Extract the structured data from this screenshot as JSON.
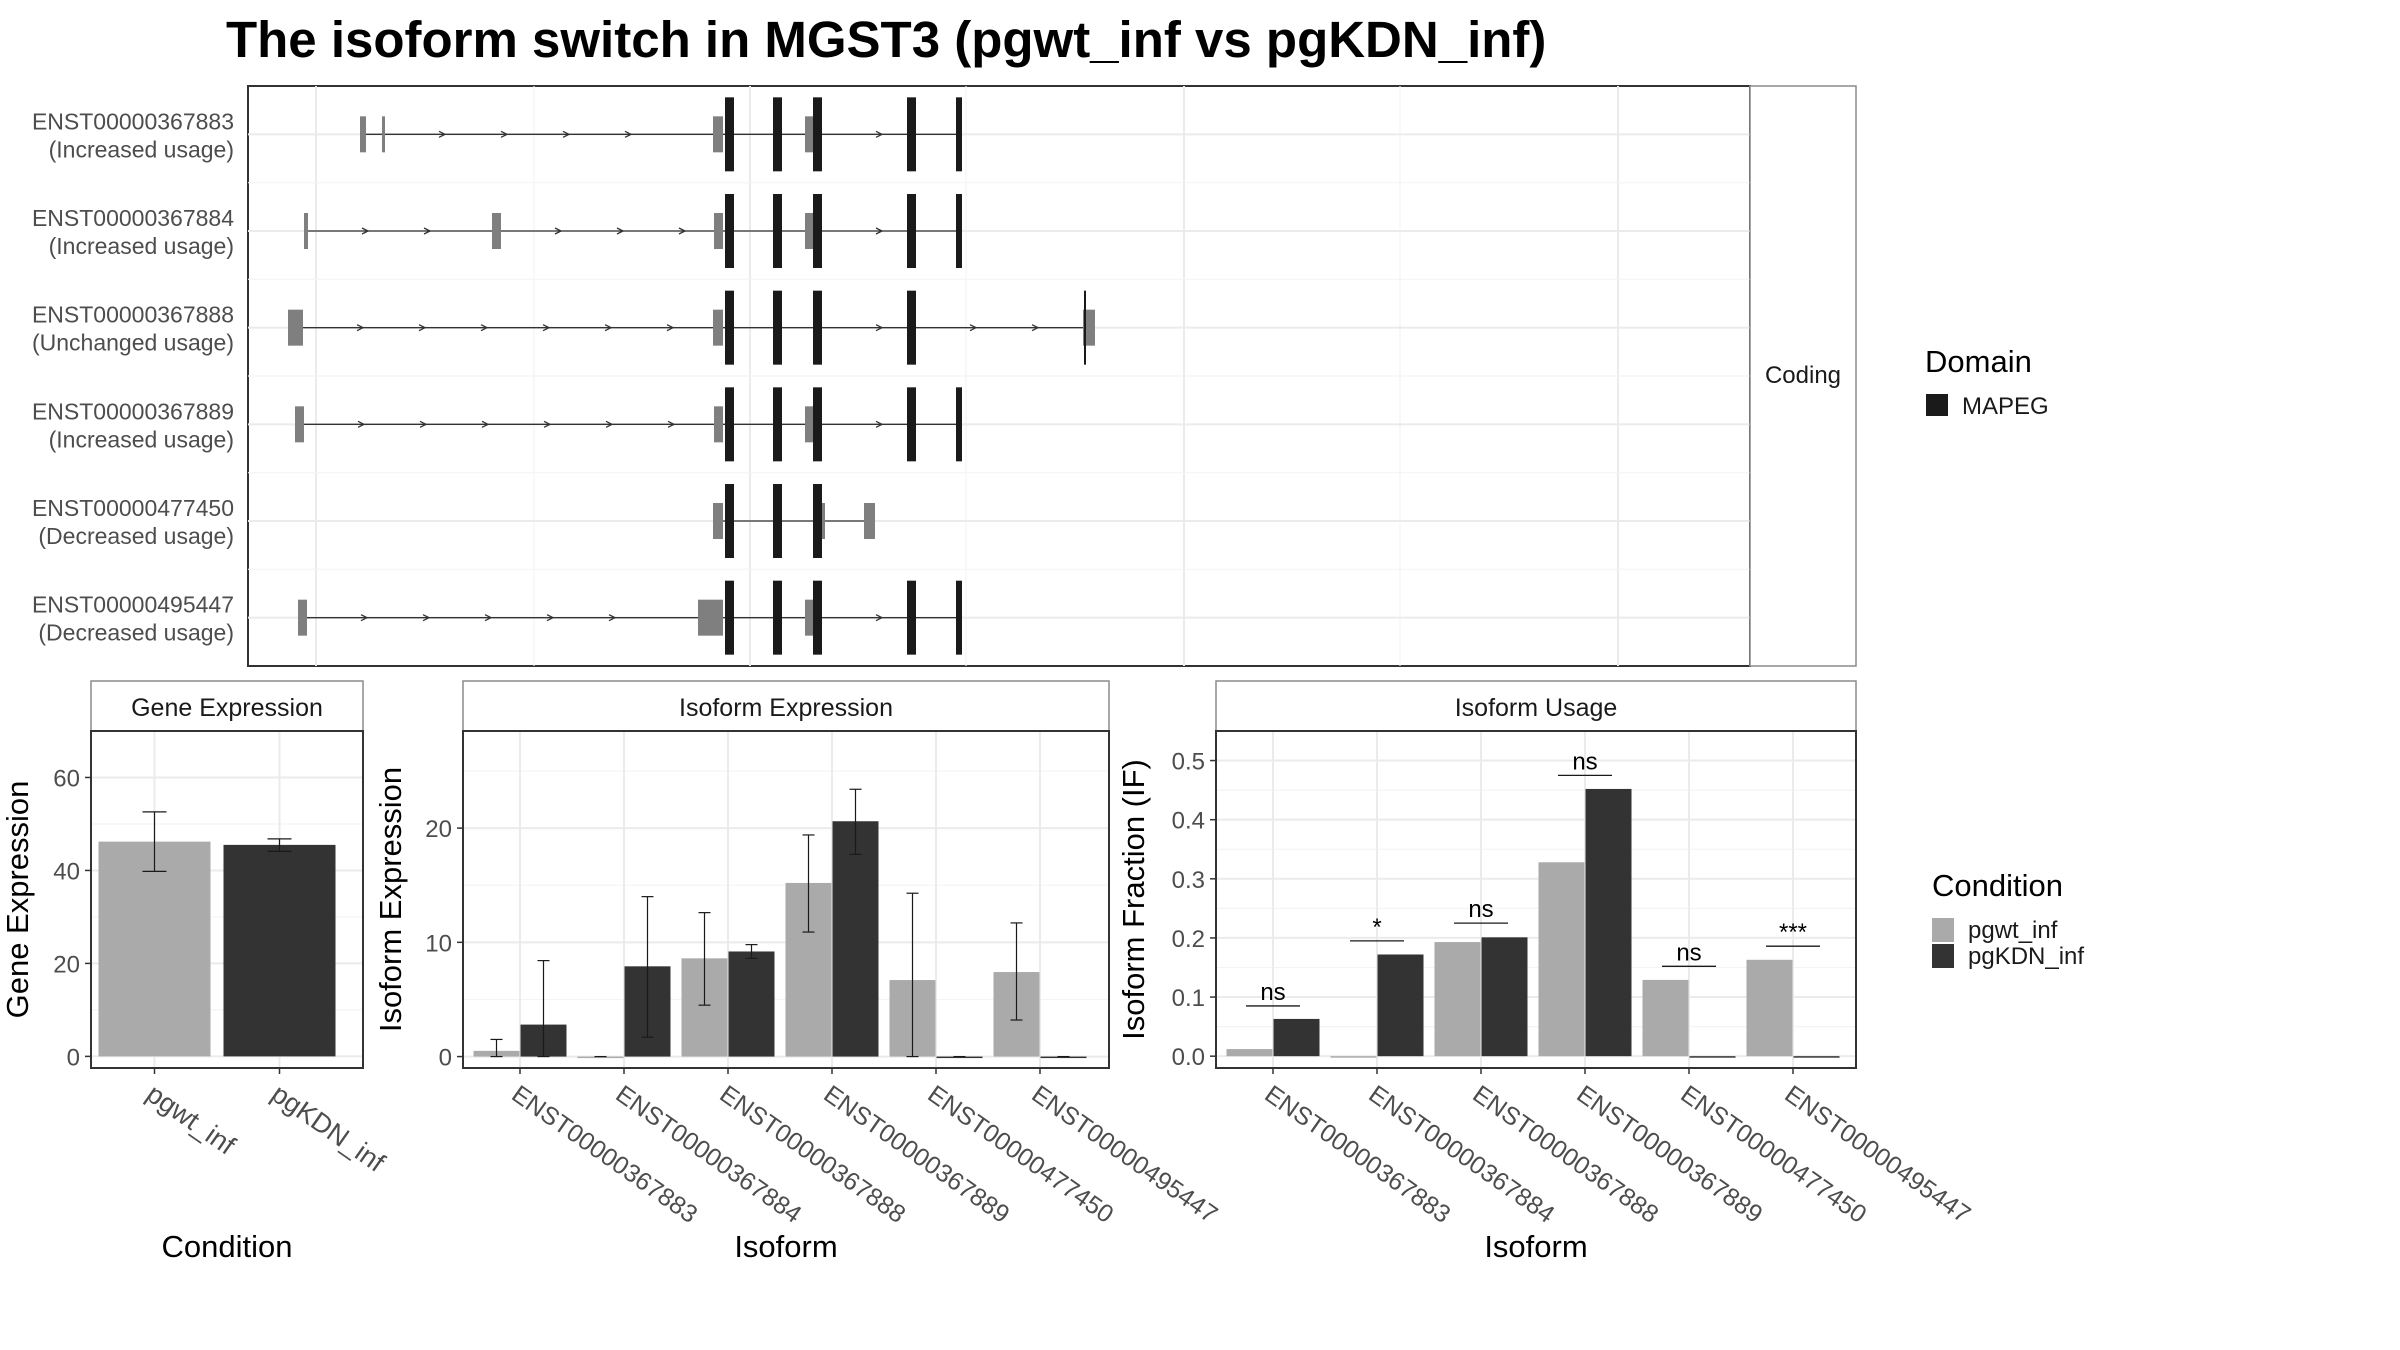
{
  "title": "The isoform switch in MGST3 (pgwt_inf vs pgKDN_inf)",
  "colors": {
    "pgwt_inf": "#aaaaaa",
    "pgKDN_inf": "#333333",
    "utr": "#7f7f7f",
    "domain": "#1a1a1a",
    "grid": "#ebebeb",
    "border": "#333333",
    "strip_border": "#8c8c8c"
  },
  "structure": {
    "strip_label": "Coding",
    "legend_title": "Domain",
    "legend_items": [
      {
        "label": "MAPEG",
        "color": "#1a1a1a"
      }
    ],
    "transcripts": [
      {
        "id": "ENST00000367883",
        "usage": "(Increased usage)",
        "utr": [
          [
            112,
            118
          ],
          [
            134,
            137
          ],
          [
            465,
            475
          ],
          [
            557,
            572
          ]
        ],
        "domain": [
          [
            477,
            486
          ],
          [
            525,
            534
          ],
          [
            565,
            574
          ],
          [
            659,
            668
          ],
          [
            708,
            714
          ]
        ],
        "intron": [
          0,
          0
        ]
      },
      {
        "id": "ENST00000367884",
        "usage": "(Increased usage)",
        "utr": [
          [
            56,
            60
          ],
          [
            244,
            253
          ],
          [
            466,
            475
          ],
          [
            557,
            572
          ]
        ],
        "domain": [
          [
            477,
            486
          ],
          [
            525,
            534
          ],
          [
            565,
            574
          ],
          [
            659,
            668
          ],
          [
            708,
            714
          ]
        ],
        "intron": [
          0,
          0
        ]
      },
      {
        "id": "ENST00000367888",
        "usage": "(Unchanged usage)",
        "utr": [
          [
            40,
            55
          ],
          [
            465,
            475
          ],
          [
            835,
            847
          ]
        ],
        "domain": [
          [
            477,
            486
          ],
          [
            525,
            534
          ],
          [
            565,
            574
          ],
          [
            659,
            668
          ],
          [
            836,
            838
          ]
        ],
        "intron": [
          0,
          0
        ]
      },
      {
        "id": "ENST00000367889",
        "usage": "(Increased usage)",
        "utr": [
          [
            47,
            56
          ],
          [
            466,
            475
          ],
          [
            557,
            572
          ]
        ],
        "domain": [
          [
            477,
            486
          ],
          [
            525,
            534
          ],
          [
            565,
            574
          ],
          [
            659,
            668
          ],
          [
            708,
            714
          ]
        ],
        "intron": [
          0,
          0
        ]
      },
      {
        "id": "ENST00000477450",
        "usage": "(Decreased usage)",
        "utr": [
          [
            465,
            475
          ],
          [
            574,
            577
          ],
          [
            616,
            627
          ]
        ],
        "domain": [
          [
            477,
            486
          ],
          [
            525,
            534
          ],
          [
            565,
            574
          ]
        ],
        "intron": [
          0,
          0
        ]
      },
      {
        "id": "ENST00000495447",
        "usage": "(Decreased usage)",
        "utr": [
          [
            50,
            59
          ],
          [
            450,
            475
          ],
          [
            557,
            572
          ]
        ],
        "domain": [
          [
            477,
            486
          ],
          [
            525,
            534
          ],
          [
            565,
            574
          ],
          [
            659,
            668
          ],
          [
            708,
            714
          ]
        ],
        "intron": [
          0,
          0
        ]
      }
    ]
  },
  "chart_data": [
    {
      "type": "bar",
      "title": "Gene Expression",
      "xlabel": "Condition",
      "ylabel": "Gene Expression",
      "ylim": [
        -2.5,
        70
      ],
      "yticks": [
        0,
        20,
        40,
        60
      ],
      "grid": true,
      "categories": [
        "pgwt_inf",
        "pgKDN_inf"
      ],
      "series": [
        {
          "name": "pgwt_inf",
          "values": [
            46.2,
            null
          ],
          "err_low": [
            39.8,
            null
          ],
          "err_high": [
            52.6,
            null
          ]
        },
        {
          "name": "pgKDN_inf",
          "values": [
            null,
            45.5
          ],
          "err_low": [
            null,
            44.1
          ],
          "err_high": [
            null,
            46.8
          ]
        }
      ]
    },
    {
      "type": "bar",
      "title": "Isoform Expression",
      "xlabel": "Isoform",
      "ylabel": "Isoform Expression",
      "ylim": [
        -1,
        28.5
      ],
      "yticks": [
        0,
        10,
        20
      ],
      "grid": true,
      "categories": [
        "ENST00000367883",
        "ENST00000367884",
        "ENST00000367888",
        "ENST00000367889",
        "ENST00000477450",
        "ENST00000495447"
      ],
      "series": [
        {
          "name": "pgwt_inf",
          "values": [
            0.5,
            0.0,
            8.6,
            15.2,
            6.7,
            7.4
          ],
          "err_low": [
            0.0,
            0.0,
            4.5,
            10.9,
            0.0,
            3.2
          ],
          "err_high": [
            1.5,
            0.0,
            12.6,
            19.4,
            14.3,
            11.7
          ]
        },
        {
          "name": "pgKDN_inf",
          "values": [
            2.8,
            7.9,
            9.2,
            20.6,
            0.0,
            0.0
          ],
          "err_low": [
            0.0,
            1.7,
            8.6,
            17.7,
            0.0,
            0.0
          ],
          "err_high": [
            8.4,
            14.0,
            9.8,
            23.4,
            0.0,
            0.0
          ]
        }
      ]
    },
    {
      "type": "bar",
      "title": "Isoform Usage",
      "xlabel": "Isoform",
      "ylabel": "Isoform Fraction (IF)",
      "ylim": [
        -0.02,
        0.55
      ],
      "yticks": [
        0.0,
        0.1,
        0.2,
        0.3,
        0.4,
        0.5
      ],
      "ytick_labels": [
        "0.0",
        "0.1",
        "0.2",
        "0.3",
        "0.4",
        "0.5"
      ],
      "grid": true,
      "categories": [
        "ENST00000367883",
        "ENST00000367884",
        "ENST00000367888",
        "ENST00000367889",
        "ENST00000477450",
        "ENST00000495447"
      ],
      "series": [
        {
          "name": "pgwt_inf",
          "values": [
            0.012,
            0.0,
            0.193,
            0.328,
            0.129,
            0.163
          ]
        },
        {
          "name": "pgKDN_inf",
          "values": [
            0.063,
            0.172,
            0.201,
            0.452,
            0.0,
            0.0
          ]
        }
      ],
      "annotations": [
        {
          "category": "ENST00000367883",
          "label": "ns",
          "y": 0.085
        },
        {
          "category": "ENST00000367884",
          "label": "*",
          "y": 0.195
        },
        {
          "category": "ENST00000367888",
          "label": "ns",
          "y": 0.225
        },
        {
          "category": "ENST00000367889",
          "label": "ns",
          "y": 0.475
        },
        {
          "category": "ENST00000477450",
          "label": "ns",
          "y": 0.152
        },
        {
          "category": "ENST00000495447",
          "label": "***",
          "y": 0.186
        }
      ]
    }
  ],
  "condition_legend": {
    "title": "Condition",
    "items": [
      {
        "label": "pgwt_inf",
        "color": "#aaaaaa"
      },
      {
        "label": "pgKDN_inf",
        "color": "#333333"
      }
    ]
  }
}
